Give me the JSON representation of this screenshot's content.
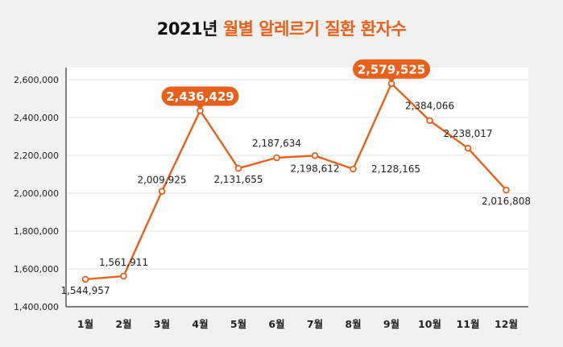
{
  "title": {
    "prefix": "2021년 ",
    "highlight": "월별 알레르기 질환 환자수"
  },
  "chart_data": {
    "type": "line",
    "categories": [
      "1월",
      "2월",
      "3월",
      "4월",
      "5월",
      "6월",
      "7월",
      "8월",
      "9월",
      "10월",
      "11월",
      "12월"
    ],
    "series": [
      {
        "values": [
          1544957,
          1561911,
          2009925,
          2436429,
          2131655,
          2187634,
          2198612,
          2128165,
          2579525,
          2384066,
          2238017,
          2016808
        ]
      }
    ],
    "data_labels": [
      "1,544,957",
      "1,561,911",
      "2,009,925",
      "2,436,429",
      "2,131,655",
      "2,187,634",
      "2,198,612",
      "2,128,165",
      "2,579,525",
      "2,384,066",
      "2,238,017",
      "2,016,808"
    ],
    "highlighted": [
      "4월",
      "9월"
    ],
    "ylim": [
      1400000,
      2600000
    ],
    "yticks": [
      1400000,
      1600000,
      1800000,
      2000000,
      2200000,
      2400000,
      2600000
    ],
    "ytick_labels": [
      "1,400,000",
      "1,600,000",
      "1,800,000",
      "2,000,000",
      "2,200,000",
      "2,400,000",
      "2,600,000"
    ],
    "grid": true,
    "colors": {
      "line": "#e8601a",
      "highlight_bg": "#e8601a",
      "plot_bg": "#ffffff",
      "page_bg": "#f1f1f1"
    }
  }
}
